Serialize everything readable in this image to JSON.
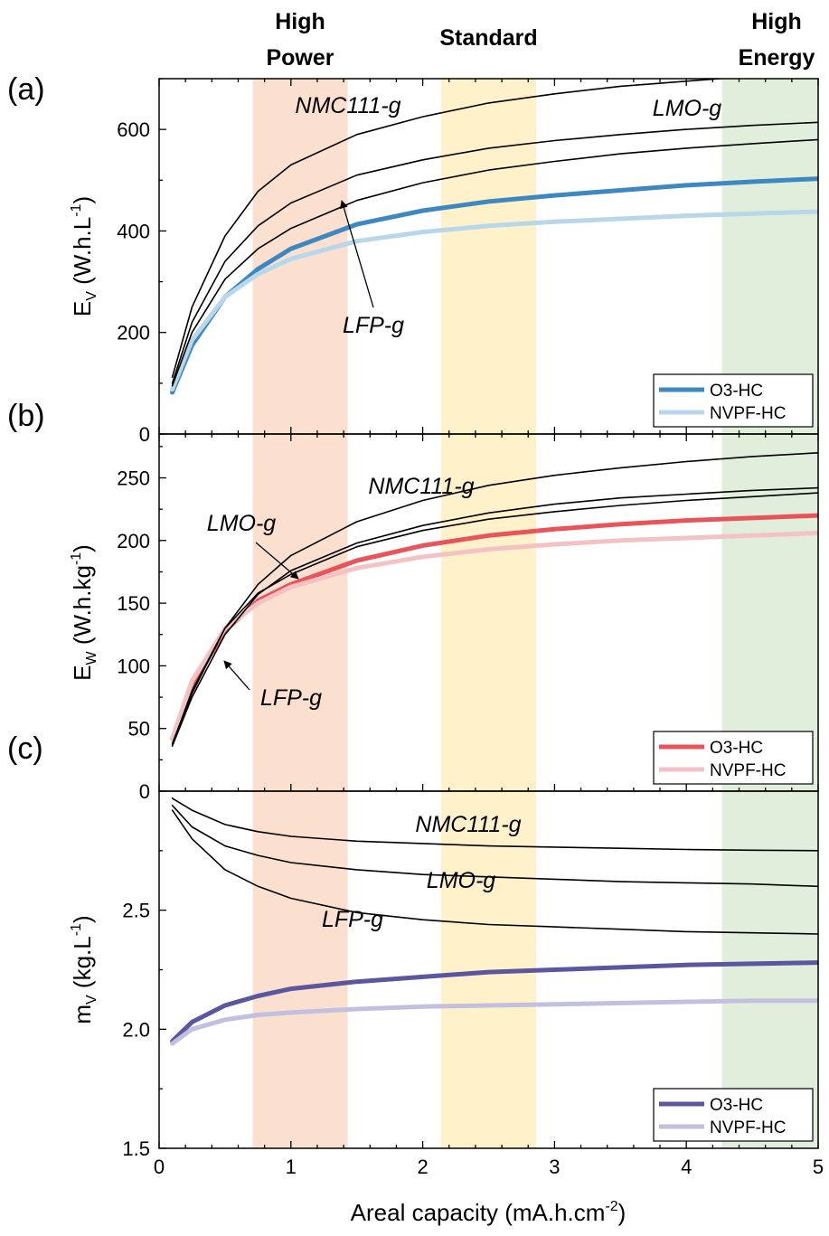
{
  "bands": [
    {
      "label": [
        "High",
        "Power"
      ],
      "x0": 0.71,
      "x1": 1.43,
      "color": "#fbdfcf"
    },
    {
      "label": [
        "Standard"
      ],
      "x0": 2.14,
      "x1": 2.86,
      "color": "#fff1c9"
    },
    {
      "label": [
        "High",
        "Energy"
      ],
      "x0": 4.27,
      "x1": 5.0,
      "color": "#e1eedb"
    }
  ],
  "x_axis": {
    "title": "Areal capacity (mA.h.cm",
    "title_sup": "-2",
    "title_end": ")",
    "xlim": [
      0,
      5
    ],
    "ticks": [
      "0",
      "1",
      "2",
      "3",
      "4",
      "5"
    ]
  },
  "panels": [
    {
      "label": "(a)",
      "ylabel_main": "E",
      "ylabel_sub": "V",
      "ylabel_rest": " (W.h.L",
      "ylabel_sup": "-1",
      "ylabel_end": ")",
      "ylim": [
        0,
        700
      ],
      "ticks": [
        "0",
        "200",
        "400",
        "600"
      ],
      "tick_values": [
        0,
        200,
        400,
        600
      ],
      "legend": [
        "O3-HC",
        "NVPF-HC"
      ],
      "annotations": [
        "NMC111-g",
        "LMO-g",
        "LFP-g"
      ]
    },
    {
      "label": "(b)",
      "ylabel_main": "E",
      "ylabel_sub": "W",
      "ylabel_rest": " (W.h.kg",
      "ylabel_sup": "-1",
      "ylabel_end": ")",
      "ylim": [
        0,
        285
      ],
      "ticks": [
        "0",
        "50",
        "100",
        "150",
        "200",
        "250"
      ],
      "tick_values": [
        0,
        50,
        100,
        150,
        200,
        250
      ],
      "legend": [
        "O3-HC",
        "NVPF-HC"
      ],
      "annotations": [
        "NMC111-g",
        "LMO-g",
        "LFP-g"
      ]
    },
    {
      "label": "(c)",
      "ylabel_main": "m",
      "ylabel_sub": "V",
      "ylabel_rest": " (kg.L",
      "ylabel_sup": "-1",
      "ylabel_end": ")",
      "ylim": [
        1.5,
        3.0
      ],
      "ticks": [
        "1.5",
        "2.0",
        "2.5"
      ],
      "tick_values": [
        1.5,
        2.0,
        2.5
      ],
      "legend": [
        "O3-HC",
        "NVPF-HC"
      ],
      "annotations": [
        "NMC111-g",
        "LMO-g",
        "LFP-g"
      ]
    }
  ],
  "chart_data": [
    {
      "type": "line",
      "title": "(a)",
      "xlabel": "Areal capacity (mA.h.cm-2)",
      "ylabel": "EV (W.h.L-1)",
      "xlim": [
        0,
        5
      ],
      "ylim": [
        0,
        700
      ],
      "legend_position": "bottom-right",
      "series": [
        {
          "name": "NMC111-g",
          "color": "#000000",
          "x": [
            0.1,
            0.25,
            0.5,
            0.75,
            1,
            1.5,
            2,
            2.5,
            3,
            3.5,
            4,
            4.5,
            5
          ],
          "y": [
            112,
            250,
            390,
            478,
            530,
            590,
            625,
            652,
            670,
            685,
            695,
            705,
            712
          ]
        },
        {
          "name": "LMO-g",
          "color": "#000000",
          "x": [
            0.1,
            0.25,
            0.5,
            0.75,
            1,
            1.5,
            2,
            2.5,
            3,
            3.5,
            4,
            4.5,
            5
          ],
          "y": [
            100,
            220,
            340,
            410,
            455,
            510,
            540,
            563,
            578,
            590,
            600,
            608,
            614
          ]
        },
        {
          "name": "LFP-g",
          "color": "#000000",
          "x": [
            0.1,
            0.25,
            0.5,
            0.75,
            1,
            1.5,
            2,
            2.5,
            3,
            3.5,
            4,
            4.5,
            5
          ],
          "y": [
            95,
            200,
            305,
            365,
            405,
            460,
            495,
            520,
            537,
            552,
            563,
            572,
            580
          ]
        },
        {
          "name": "O3-HC",
          "color": "#3d88c0",
          "x": [
            0.1,
            0.25,
            0.5,
            0.75,
            1,
            1.5,
            2,
            2.5,
            3,
            3.5,
            4,
            4.5,
            5
          ],
          "y": [
            82,
            175,
            270,
            325,
            365,
            413,
            440,
            458,
            470,
            480,
            490,
            497,
            503
          ]
        },
        {
          "name": "NVPF-HC",
          "color": "#b9d7ea",
          "x": [
            0.1,
            0.25,
            0.5,
            0.75,
            1,
            1.5,
            2,
            2.5,
            3,
            3.5,
            4,
            4.5,
            5
          ],
          "y": [
            88,
            185,
            270,
            315,
            345,
            380,
            398,
            410,
            418,
            424,
            430,
            434,
            438
          ]
        }
      ]
    },
    {
      "type": "line",
      "title": "(b)",
      "xlabel": "Areal capacity (mA.h.cm-2)",
      "ylabel": "EW (W.h.kg-1)",
      "xlim": [
        0,
        5
      ],
      "ylim": [
        0,
        285
      ],
      "legend_position": "bottom-right",
      "series": [
        {
          "name": "NMC111-g",
          "color": "#000000",
          "x": [
            0.1,
            0.25,
            0.5,
            0.75,
            1,
            1.5,
            2,
            2.5,
            3,
            3.5,
            4,
            4.5,
            5
          ],
          "y": [
            38,
            78,
            130,
            165,
            188,
            215,
            232,
            244,
            252,
            258,
            263,
            267,
            270
          ]
        },
        {
          "name": "LMO-g",
          "color": "#000000",
          "x": [
            0.1,
            0.25,
            0.5,
            0.75,
            1,
            1.5,
            2,
            2.5,
            3,
            3.5,
            4,
            4.5,
            5
          ],
          "y": [
            36,
            75,
            125,
            157,
            176,
            198,
            212,
            222,
            229,
            234,
            237,
            240,
            242
          ]
        },
        {
          "name": "LFP-g",
          "color": "#000000",
          "x": [
            0.1,
            0.25,
            0.5,
            0.75,
            1,
            1.5,
            2,
            2.5,
            3,
            3.5,
            4,
            4.5,
            5
          ],
          "y": [
            37,
            80,
            130,
            158,
            173,
            195,
            208,
            217,
            223,
            228,
            232,
            235,
            238
          ]
        },
        {
          "name": "O3-HC",
          "color": "#e9545b",
          "x": [
            0.1,
            0.25,
            0.5,
            0.75,
            1,
            1.5,
            2,
            2.5,
            3,
            3.5,
            4,
            4.5,
            5
          ],
          "y": [
            42,
            85,
            128,
            152,
            165,
            184,
            196,
            204,
            209,
            213,
            216,
            218,
            220
          ]
        },
        {
          "name": "NVPF-HC",
          "color": "#f5c2c4",
          "x": [
            0.1,
            0.25,
            0.5,
            0.75,
            1,
            1.5,
            2,
            2.5,
            3,
            3.5,
            4,
            4.5,
            5
          ],
          "y": [
            42,
            88,
            130,
            150,
            163,
            178,
            187,
            193,
            197,
            200,
            202,
            204,
            206
          ]
        }
      ]
    },
    {
      "type": "line",
      "title": "(c)",
      "xlabel": "Areal capacity (mA.h.cm-2)",
      "ylabel": "mV (kg.L-1)",
      "xlim": [
        0,
        5
      ],
      "ylim": [
        1.5,
        3.0
      ],
      "legend_position": "bottom-right",
      "series": [
        {
          "name": "NMC111-g",
          "color": "#000000",
          "x": [
            0.1,
            0.25,
            0.5,
            0.75,
            1,
            1.5,
            2,
            2.5,
            3,
            3.5,
            4,
            4.5,
            5
          ],
          "y": [
            2.97,
            2.92,
            2.86,
            2.83,
            2.81,
            2.79,
            2.78,
            2.77,
            2.765,
            2.76,
            2.755,
            2.752,
            2.75
          ]
        },
        {
          "name": "LMO-g",
          "color": "#000000",
          "x": [
            0.1,
            0.25,
            0.5,
            0.75,
            1,
            1.5,
            2,
            2.5,
            3,
            3.5,
            4,
            4.5,
            5
          ],
          "y": [
            2.94,
            2.85,
            2.77,
            2.73,
            2.7,
            2.67,
            2.65,
            2.64,
            2.63,
            2.62,
            2.615,
            2.61,
            2.6
          ]
        },
        {
          "name": "LFP-g",
          "color": "#000000",
          "x": [
            0.1,
            0.25,
            0.5,
            0.75,
            1,
            1.5,
            2,
            2.5,
            3,
            3.5,
            4,
            4.5,
            5
          ],
          "y": [
            2.92,
            2.8,
            2.67,
            2.6,
            2.55,
            2.49,
            2.46,
            2.44,
            2.43,
            2.42,
            2.41,
            2.405,
            2.4
          ]
        },
        {
          "name": "O3-HC",
          "color": "#5a56a0",
          "x": [
            0.1,
            0.25,
            0.5,
            0.75,
            1,
            1.5,
            2,
            2.5,
            3,
            3.5,
            4,
            4.5,
            5
          ],
          "y": [
            1.95,
            2.03,
            2.1,
            2.14,
            2.17,
            2.2,
            2.22,
            2.24,
            2.25,
            2.26,
            2.27,
            2.275,
            2.28
          ]
        },
        {
          "name": "NVPF-HC",
          "color": "#c2c0e0",
          "x": [
            0.1,
            0.25,
            0.5,
            0.75,
            1,
            1.5,
            2,
            2.5,
            3,
            3.5,
            4,
            4.5,
            5
          ],
          "y": [
            1.94,
            2.0,
            2.04,
            2.06,
            2.07,
            2.085,
            2.095,
            2.1,
            2.105,
            2.11,
            2.115,
            2.12,
            2.12
          ]
        }
      ]
    }
  ]
}
